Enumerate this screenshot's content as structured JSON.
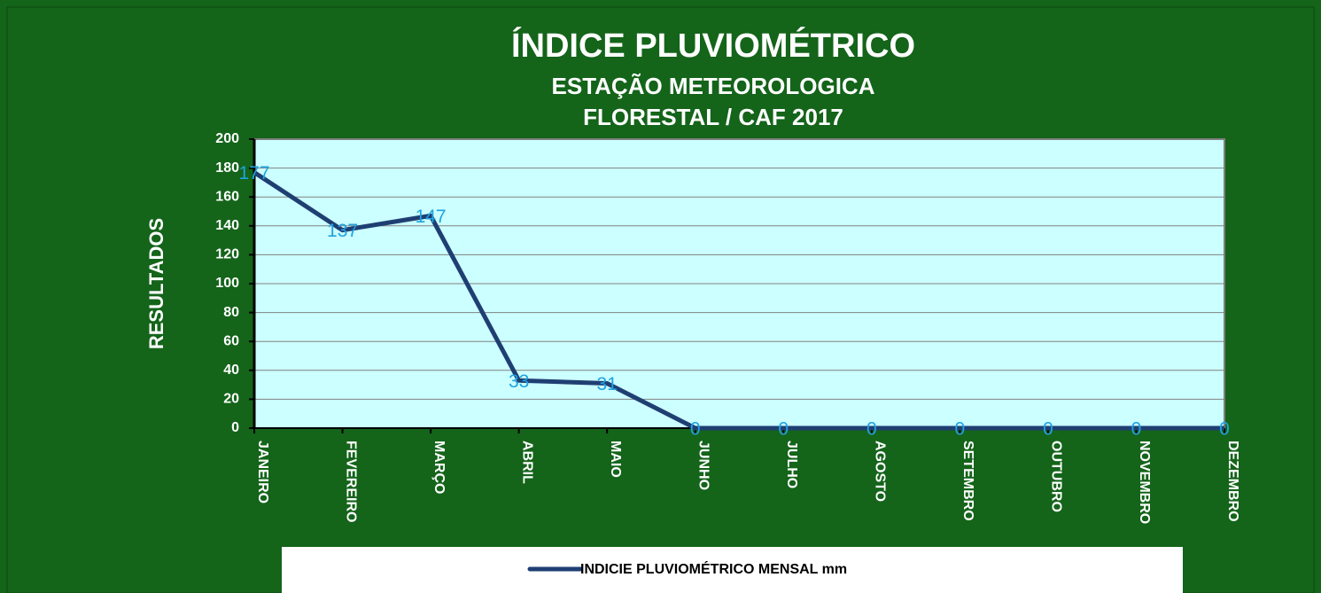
{
  "chart_data": {
    "type": "line",
    "title": "ÍNDICE PLUVIOMÉTRICO",
    "subtitle": [
      "ESTAÇÃO METEOROLOGICA",
      "FLORESTAL / CAF 2017"
    ],
    "ylabel": "RESULTADOS",
    "categories": [
      "JANEIRO",
      "FEVEREIRO",
      "MARÇO",
      "ABRIL",
      "MAIO",
      "JUNHO",
      "JULHO",
      "AGOSTO",
      "SETEMBRO",
      "OUTUBRO",
      "NOVEMBRO",
      "DEZEMBRO"
    ],
    "series": [
      {
        "name": "INDICIE PLUVIOMÉTRICO MENSAL mm",
        "color": "#1f3f73",
        "values": [
          177,
          137,
          147,
          33,
          31,
          0,
          0,
          0,
          0,
          0,
          0,
          0
        ]
      }
    ],
    "ylim": [
      0,
      200
    ],
    "yticks": [
      0,
      20,
      40,
      60,
      80,
      100,
      120,
      140,
      160,
      180,
      200
    ],
    "grid": true,
    "legend": "bottom"
  }
}
